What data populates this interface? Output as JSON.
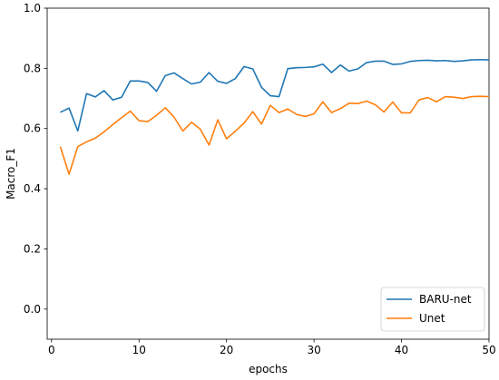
{
  "chart_data": {
    "type": "line",
    "title": "",
    "xlabel": "epochs",
    "ylabel": "Macro_F1",
    "xlim": [
      -0.5,
      50
    ],
    "ylim": [
      -0.1,
      1.0
    ],
    "xticks": [
      0,
      10,
      20,
      30,
      40,
      50
    ],
    "yticks": [
      0.0,
      0.2,
      0.4,
      0.6,
      0.8,
      1.0
    ],
    "xtick_labels": [
      "0",
      "10",
      "20",
      "30",
      "40",
      "50"
    ],
    "ytick_labels": [
      "0.0",
      "0.2",
      "0.4",
      "0.6",
      "0.8",
      "1.0"
    ],
    "grid": false,
    "legend_position": "bottom-right",
    "x": [
      1,
      2,
      3,
      4,
      5,
      6,
      7,
      8,
      9,
      10,
      11,
      12,
      13,
      14,
      15,
      16,
      17,
      18,
      19,
      20,
      21,
      22,
      23,
      24,
      25,
      26,
      27,
      28,
      29,
      30,
      31,
      32,
      33,
      34,
      35,
      36,
      37,
      38,
      39,
      40,
      41,
      42,
      43,
      44,
      45,
      46,
      47,
      48,
      49,
      50
    ],
    "series": [
      {
        "name": "BARU-net",
        "color": "#1f77b4",
        "values": [
          0.654,
          0.668,
          0.592,
          0.716,
          0.705,
          0.726,
          0.695,
          0.704,
          0.758,
          0.758,
          0.753,
          0.724,
          0.776,
          0.785,
          0.766,
          0.748,
          0.754,
          0.786,
          0.757,
          0.75,
          0.766,
          0.806,
          0.798,
          0.737,
          0.709,
          0.706,
          0.799,
          0.802,
          0.803,
          0.805,
          0.814,
          0.786,
          0.811,
          0.791,
          0.798,
          0.819,
          0.824,
          0.824,
          0.813,
          0.815,
          0.823,
          0.826,
          0.827,
          0.825,
          0.826,
          0.823,
          0.825,
          0.828,
          0.829,
          0.828
        ]
      },
      {
        "name": "Unet",
        "color": "#ff7f0e",
        "values": [
          0.54,
          0.448,
          0.54,
          0.556,
          0.568,
          0.589,
          0.613,
          0.636,
          0.658,
          0.626,
          0.623,
          0.644,
          0.669,
          0.638,
          0.592,
          0.621,
          0.598,
          0.545,
          0.629,
          0.566,
          0.591,
          0.618,
          0.656,
          0.615,
          0.677,
          0.653,
          0.665,
          0.647,
          0.64,
          0.649,
          0.689,
          0.653,
          0.666,
          0.684,
          0.683,
          0.691,
          0.679,
          0.655,
          0.688,
          0.652,
          0.652,
          0.695,
          0.703,
          0.689,
          0.706,
          0.704,
          0.7,
          0.706,
          0.707,
          0.706
        ]
      }
    ]
  }
}
